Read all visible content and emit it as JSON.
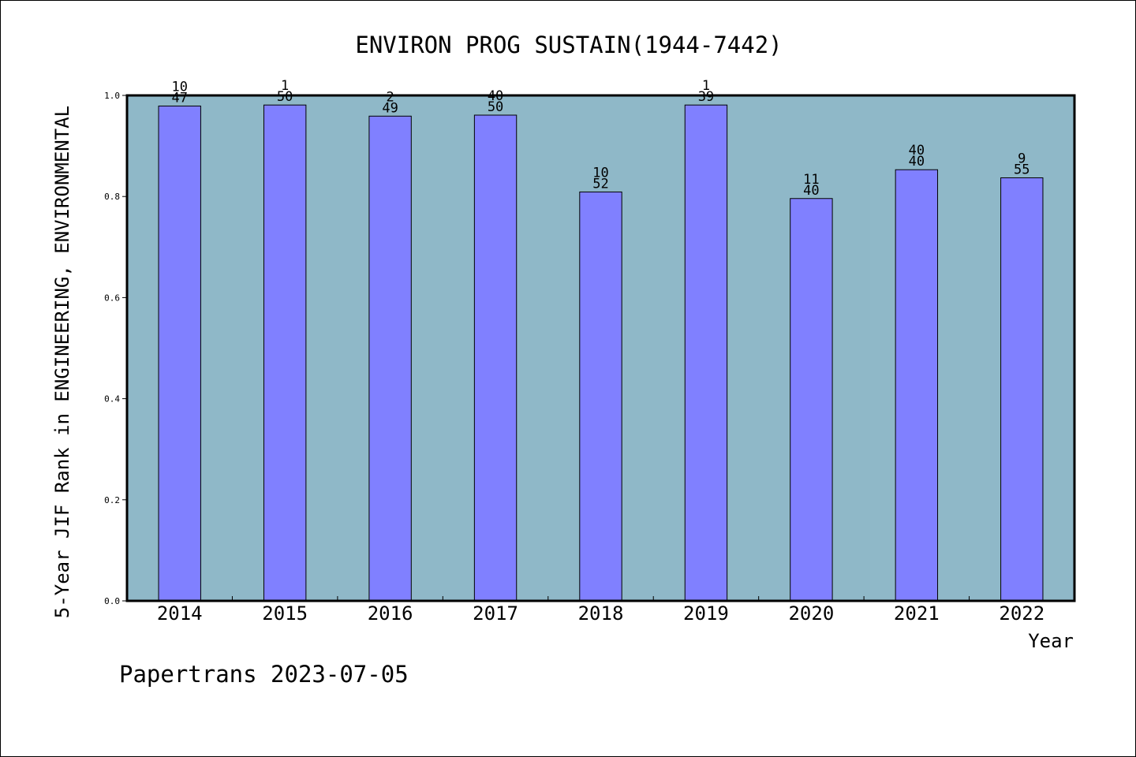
{
  "chart_data": {
    "type": "bar",
    "title": "ENVIRON PROG SUSTAIN(1944-7442)",
    "xlabel": "Year",
    "ylabel": "5-Year JIF Rank in ENGINEERING, ENVIRONMENTAL",
    "ylim": [
      0.0,
      1.0
    ],
    "yticks": [
      "0.0",
      "0.2",
      "0.4",
      "0.6",
      "0.8",
      "1.0"
    ],
    "grid": false,
    "legend": "none",
    "colors": {
      "plot_background": "#8fb8c8",
      "bar_fill": "#8080ff",
      "bar_stroke": "#000000"
    },
    "categories": [
      "2014",
      "2015",
      "2016",
      "2017",
      "2018",
      "2019",
      "2020",
      "2021",
      "2022"
    ],
    "values": [
      0.979,
      0.981,
      0.959,
      0.961,
      0.809,
      0.981,
      0.796,
      0.853,
      0.837
    ],
    "labels_top": [
      "10",
      "1",
      "2",
      "40",
      "10",
      "1",
      "11",
      "40",
      "9"
    ],
    "labels_bottom": [
      "47",
      "50",
      "49",
      "50",
      "52",
      "39",
      "40",
      "40",
      "55"
    ]
  },
  "footer": {
    "text": "Papertrans 2023-07-05"
  }
}
